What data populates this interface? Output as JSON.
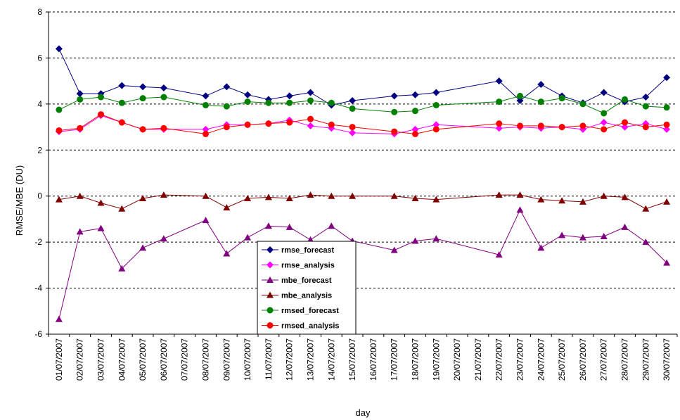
{
  "chart_data": {
    "type": "line",
    "xlabel": "day",
    "ylabel": "RMSE/MBE (DU)",
    "ylim": [
      -6,
      8
    ],
    "yticks": [
      -6,
      -4,
      -2,
      0,
      2,
      4,
      6,
      8
    ],
    "grid": "horizontal dashed",
    "legend_position": "bottom-center inside plot",
    "categories": [
      "01/07/2007",
      "02/07/2007",
      "03/07/2007",
      "04/07/2007",
      "05/07/2007",
      "06/07/2007",
      "07/07/2007",
      "08/07/2007",
      "09/07/2007",
      "10/07/2007",
      "11/07/2007",
      "12/07/2007",
      "13/07/2007",
      "14/07/2007",
      "15/07/2007",
      "16/07/2007",
      "17/07/2007",
      "18/07/2007",
      "19/07/2007",
      "20/07/2007",
      "21/07/2007",
      "22/07/2007",
      "23/07/2007",
      "24/07/2007",
      "25/07/2007",
      "26/07/2007",
      "27/07/2007",
      "28/07/2007",
      "29/07/2007",
      "30/07/2007"
    ],
    "series": [
      {
        "name": "rmse_forecast",
        "color": "#000080",
        "marker": "diamond",
        "values": [
          6.4,
          4.45,
          4.45,
          4.8,
          4.75,
          4.7,
          null,
          4.35,
          4.75,
          4.4,
          4.2,
          4.35,
          4.5,
          3.95,
          4.15,
          null,
          4.35,
          4.4,
          4.5,
          null,
          null,
          5.0,
          4.15,
          4.85,
          4.35,
          4.05,
          4.5,
          4.1,
          4.3,
          5.15
        ]
      },
      {
        "name": "rmse_analysis",
        "color": "#ff00ff",
        "marker": "diamond",
        "values": [
          2.8,
          2.9,
          3.5,
          3.2,
          2.9,
          2.9,
          null,
          2.9,
          3.1,
          3.1,
          3.15,
          3.3,
          3.05,
          2.95,
          2.75,
          null,
          2.7,
          2.9,
          3.1,
          null,
          null,
          2.95,
          3.0,
          2.95,
          3.0,
          2.9,
          3.2,
          3.0,
          3.15,
          2.9
        ]
      },
      {
        "name": "mbe_forecast",
        "color": "#800080",
        "marker": "triangle",
        "values": [
          -5.35,
          -1.55,
          -1.4,
          -3.15,
          -2.25,
          -1.85,
          null,
          -1.05,
          -2.5,
          -1.8,
          -1.3,
          -1.35,
          -1.9,
          -1.3,
          -1.95,
          null,
          -2.35,
          -1.95,
          -1.85,
          null,
          null,
          -2.55,
          -0.6,
          -2.25,
          -1.7,
          -1.8,
          -1.75,
          -1.35,
          -2.0,
          -2.9
        ]
      },
      {
        "name": "mbe_analysis",
        "color": "#800000",
        "marker": "triangle",
        "values": [
          -0.15,
          0.0,
          -0.3,
          -0.55,
          -0.1,
          0.05,
          null,
          0.0,
          -0.5,
          -0.1,
          -0.05,
          -0.1,
          0.05,
          0.0,
          0.0,
          null,
          0.0,
          -0.1,
          -0.15,
          null,
          null,
          0.05,
          0.05,
          -0.15,
          -0.2,
          -0.25,
          0.0,
          -0.05,
          -0.55,
          -0.25
        ]
      },
      {
        "name": "rmsed_forecast",
        "color": "#008000",
        "marker": "circle",
        "values": [
          3.75,
          4.2,
          4.3,
          4.05,
          4.25,
          4.3,
          null,
          3.95,
          3.9,
          4.1,
          4.05,
          4.05,
          4.15,
          4.05,
          3.8,
          null,
          3.65,
          3.7,
          3.95,
          null,
          null,
          4.1,
          4.35,
          4.1,
          4.25,
          4.0,
          3.6,
          4.2,
          3.9,
          3.85
        ]
      },
      {
        "name": "rmsed_analysis",
        "color": "#ff0000",
        "marker": "circle",
        "values": [
          2.85,
          2.95,
          3.55,
          3.2,
          2.9,
          2.95,
          null,
          2.7,
          3.0,
          3.1,
          3.15,
          3.2,
          3.35,
          3.1,
          3.0,
          null,
          2.8,
          2.7,
          2.9,
          null,
          null,
          3.15,
          3.05,
          3.05,
          3.0,
          3.05,
          2.9,
          3.2,
          3.0,
          3.1
        ]
      }
    ]
  }
}
